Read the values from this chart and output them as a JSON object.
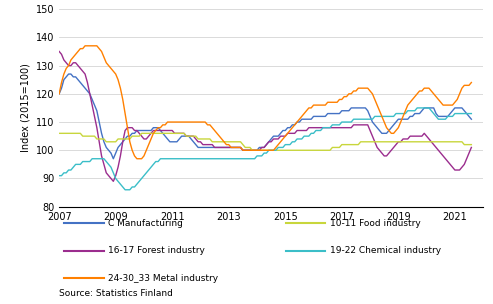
{
  "title": "",
  "ylabel": "Index (2015=100)",
  "source": "Source: Statistics Finland",
  "ylim": [
    80,
    150
  ],
  "yticks": [
    80,
    90,
    100,
    110,
    120,
    130,
    140,
    150
  ],
  "xlim_start": 2007.0,
  "xlim_end": 2022.0,
  "xticks": [
    2007,
    2009,
    2011,
    2013,
    2015,
    2017,
    2019,
    2021
  ],
  "series": {
    "C Manufacturing": {
      "color": "#4472C4",
      "data": [
        120,
        122,
        125,
        126,
        127,
        127,
        126,
        126,
        125,
        124,
        123,
        122,
        121,
        120,
        118,
        116,
        114,
        110,
        106,
        103,
        101,
        100,
        99,
        97,
        99,
        101,
        102,
        103,
        104,
        105,
        105,
        106,
        106,
        107,
        107,
        107,
        107,
        107,
        107,
        107,
        108,
        108,
        108,
        107,
        106,
        105,
        104,
        103,
        103,
        103,
        103,
        104,
        105,
        105,
        105,
        105,
        104,
        103,
        102,
        101,
        101,
        101,
        101,
        101,
        101,
        101,
        101,
        101,
        101,
        101,
        101,
        101,
        101,
        101,
        101,
        101,
        101,
        101,
        100,
        100,
        100,
        100,
        100,
        100,
        100,
        101,
        101,
        101,
        102,
        103,
        104,
        105,
        105,
        105,
        106,
        107,
        107,
        108,
        108,
        109,
        109,
        110,
        110,
        111,
        111,
        111,
        111,
        111,
        112,
        112,
        112,
        112,
        112,
        112,
        113,
        113,
        113,
        113,
        113,
        113,
        114,
        114,
        114,
        114,
        115,
        115,
        115,
        115,
        115,
        115,
        115,
        114,
        112,
        110,
        109,
        108,
        107,
        106,
        106,
        106,
        107,
        108,
        109,
        110,
        111,
        111,
        111,
        111,
        111,
        112,
        112,
        113,
        113,
        113,
        114,
        115,
        115,
        115,
        115,
        115,
        113,
        112,
        112,
        112,
        112,
        112,
        113,
        114,
        115,
        115,
        115,
        115,
        114,
        113,
        112,
        111,
        111,
        111,
        112,
        112
      ]
    },
    "16-17 Forest industry": {
      "color": "#9B2D8E",
      "data": [
        135,
        134,
        132,
        131,
        130,
        130,
        131,
        131,
        130,
        129,
        128,
        127,
        124,
        120,
        116,
        112,
        108,
        103,
        98,
        95,
        92,
        91,
        90,
        89,
        91,
        94,
        98,
        103,
        107,
        108,
        108,
        108,
        107,
        107,
        106,
        105,
        104,
        104,
        105,
        106,
        107,
        107,
        107,
        107,
        107,
        107,
        107,
        107,
        107,
        106,
        106,
        106,
        106,
        106,
        105,
        105,
        105,
        105,
        104,
        103,
        103,
        102,
        102,
        102,
        102,
        102,
        101,
        101,
        101,
        101,
        101,
        101,
        101,
        101,
        101,
        101,
        101,
        101,
        100,
        100,
        100,
        100,
        100,
        100,
        100,
        100,
        101,
        101,
        102,
        103,
        103,
        104,
        104,
        104,
        105,
        105,
        105,
        106,
        106,
        106,
        106,
        107,
        107,
        107,
        107,
        107,
        108,
        108,
        108,
        108,
        108,
        108,
        108,
        108,
        108,
        108,
        108,
        108,
        108,
        108,
        108,
        108,
        108,
        108,
        108,
        109,
        109,
        109,
        109,
        109,
        109,
        109,
        107,
        105,
        103,
        101,
        100,
        99,
        98,
        98,
        99,
        100,
        101,
        102,
        103,
        103,
        104,
        104,
        104,
        105,
        105,
        105,
        105,
        105,
        105,
        106,
        105,
        104,
        103,
        102,
        101,
        100,
        99,
        98,
        97,
        96,
        95,
        94,
        93,
        93,
        93,
        94,
        95,
        97,
        99,
        101,
        103,
        104,
        104,
        104
      ]
    },
    "10-11 Food industry": {
      "color": "#C8D63C",
      "data": [
        106,
        106,
        106,
        106,
        106,
        106,
        106,
        106,
        106,
        106,
        105,
        105,
        105,
        105,
        105,
        105,
        104,
        104,
        104,
        104,
        103,
        103,
        103,
        103,
        103,
        104,
        104,
        104,
        104,
        104,
        104,
        105,
        105,
        105,
        105,
        106,
        106,
        106,
        106,
        106,
        106,
        106,
        106,
        106,
        106,
        106,
        106,
        106,
        106,
        106,
        106,
        106,
        106,
        106,
        105,
        105,
        105,
        105,
        105,
        104,
        104,
        104,
        104,
        104,
        104,
        103,
        103,
        103,
        103,
        103,
        103,
        103,
        103,
        103,
        103,
        103,
        103,
        103,
        102,
        101,
        101,
        101,
        100,
        100,
        100,
        100,
        100,
        100,
        100,
        100,
        100,
        100,
        100,
        100,
        100,
        100,
        100,
        100,
        100,
        100,
        100,
        100,
        100,
        100,
        100,
        100,
        100,
        100,
        100,
        100,
        100,
        100,
        100,
        100,
        100,
        100,
        101,
        101,
        101,
        101,
        102,
        102,
        102,
        102,
        102,
        102,
        102,
        102,
        103,
        103,
        103,
        103,
        103,
        103,
        103,
        103,
        103,
        103,
        103,
        103,
        103,
        103,
        103,
        103,
        103,
        103,
        103,
        103,
        103,
        103,
        103,
        103,
        103,
        103,
        103,
        103,
        103,
        103,
        103,
        103,
        103,
        103,
        103,
        103,
        103,
        103,
        103,
        103,
        103,
        103,
        103,
        103,
        102,
        102,
        102,
        102,
        102,
        102,
        102,
        103
      ]
    },
    "19-22 Chemical industry": {
      "color": "#3BBEC8",
      "data": [
        91,
        91,
        92,
        92,
        93,
        93,
        94,
        95,
        95,
        95,
        96,
        96,
        96,
        96,
        97,
        97,
        97,
        97,
        97,
        97,
        96,
        95,
        94,
        92,
        90,
        89,
        88,
        87,
        86,
        86,
        86,
        87,
        87,
        88,
        89,
        90,
        91,
        92,
        93,
        94,
        95,
        96,
        96,
        97,
        97,
        97,
        97,
        97,
        97,
        97,
        97,
        97,
        97,
        97,
        97,
        97,
        97,
        97,
        97,
        97,
        97,
        97,
        97,
        97,
        97,
        97,
        97,
        97,
        97,
        97,
        97,
        97,
        97,
        97,
        97,
        97,
        97,
        97,
        97,
        97,
        97,
        97,
        97,
        97,
        98,
        98,
        98,
        99,
        99,
        100,
        100,
        100,
        100,
        101,
        101,
        101,
        102,
        102,
        102,
        103,
        103,
        104,
        104,
        104,
        105,
        105,
        105,
        106,
        106,
        107,
        107,
        107,
        108,
        108,
        108,
        108,
        109,
        109,
        109,
        109,
        110,
        110,
        110,
        110,
        110,
        111,
        111,
        111,
        111,
        111,
        111,
        111,
        111,
        111,
        112,
        112,
        112,
        112,
        112,
        112,
        112,
        112,
        112,
        113,
        113,
        113,
        113,
        113,
        114,
        114,
        114,
        114,
        115,
        115,
        115,
        115,
        115,
        115,
        114,
        113,
        112,
        111,
        111,
        111,
        111,
        112,
        112,
        112,
        113,
        113,
        113,
        113,
        113,
        113,
        113,
        113,
        113,
        112,
        112,
        112
      ]
    },
    "24-30_33 Metal industry": {
      "color": "#FF8000",
      "data": [
        120,
        124,
        127,
        129,
        130,
        132,
        133,
        134,
        135,
        136,
        136,
        137,
        137,
        137,
        137,
        137,
        137,
        136,
        135,
        133,
        131,
        130,
        129,
        128,
        127,
        125,
        122,
        118,
        113,
        108,
        103,
        100,
        98,
        97,
        97,
        97,
        98,
        100,
        102,
        104,
        106,
        107,
        108,
        108,
        109,
        109,
        110,
        110,
        110,
        110,
        110,
        110,
        110,
        110,
        110,
        110,
        110,
        110,
        110,
        110,
        110,
        110,
        110,
        109,
        109,
        108,
        107,
        106,
        105,
        104,
        103,
        102,
        102,
        101,
        101,
        101,
        101,
        101,
        100,
        100,
        100,
        100,
        100,
        100,
        100,
        100,
        100,
        100,
        100,
        100,
        100,
        100,
        101,
        102,
        103,
        104,
        105,
        106,
        107,
        108,
        109,
        110,
        111,
        112,
        113,
        114,
        115,
        115,
        116,
        116,
        116,
        116,
        116,
        116,
        117,
        117,
        117,
        117,
        117,
        118,
        118,
        119,
        119,
        120,
        120,
        121,
        121,
        122,
        122,
        122,
        122,
        122,
        121,
        120,
        118,
        116,
        114,
        112,
        110,
        108,
        107,
        106,
        106,
        107,
        108,
        110,
        112,
        114,
        116,
        117,
        118,
        119,
        120,
        121,
        121,
        122,
        122,
        122,
        121,
        120,
        119,
        118,
        117,
        116,
        116,
        116,
        116,
        116,
        117,
        118,
        120,
        122,
        123,
        123,
        123,
        124,
        125,
        126,
        127,
        128
      ]
    }
  },
  "legend_rows": [
    [
      {
        "label": "C Manufacturing",
        "color": "#4472C4"
      },
      {
        "label": "10-11 Food industry",
        "color": "#C8D63C"
      }
    ],
    [
      {
        "label": "16-17 Forest industry",
        "color": "#9B2D8E"
      },
      {
        "label": "19-22 Chemical industry",
        "color": "#3BBEC8"
      }
    ],
    [
      {
        "label": "24-30_33 Metal industry",
        "color": "#FF8000"
      }
    ]
  ]
}
